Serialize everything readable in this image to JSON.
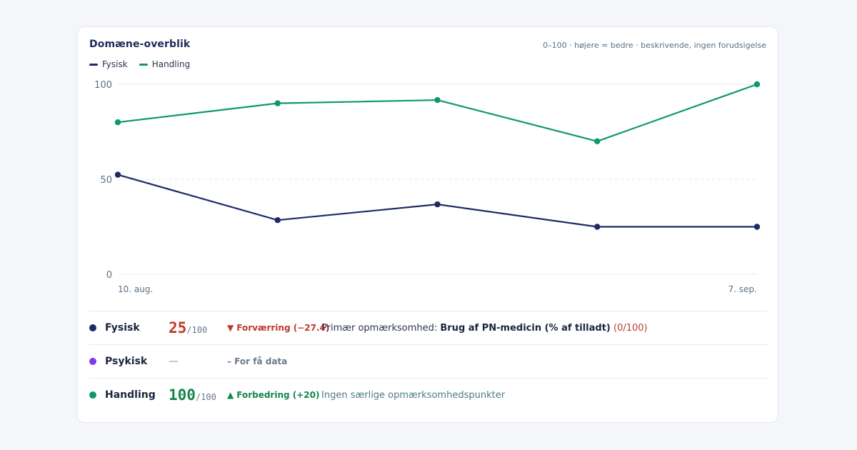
{
  "card": {
    "title": "Domæne-overblik",
    "subtitle": "0–100 · højere = bedre · beskrivende, ingen forudsigelse"
  },
  "legend": [
    {
      "label": "Fysisk",
      "color": "#1f2a66"
    },
    {
      "label": "Handling",
      "color": "#0f9968"
    }
  ],
  "chart_data": {
    "type": "line",
    "x": [
      "10. aug.",
      "",
      "",
      "",
      "7. sep."
    ],
    "x_tick_labels": {
      "first": "10. aug.",
      "last": "7. sep."
    },
    "ylim": [
      0,
      100
    ],
    "y_ticks": [
      "0",
      "50",
      "100"
    ],
    "reference_line": 50,
    "series": [
      {
        "name": "Fysisk",
        "color": "#1f2a66",
        "values": [
          52.4,
          28.5,
          36.8,
          25,
          25
        ]
      },
      {
        "name": "Handling",
        "color": "#0f9968",
        "values": [
          80,
          90,
          91.7,
          70,
          100
        ]
      }
    ]
  },
  "domains": [
    {
      "name": "Fysisk",
      "color": "#1f2a66",
      "score": "25",
      "max": "/100",
      "score_color": "#c0392b",
      "trend_icon": "▼",
      "trend": "Forværring (−27.4)",
      "trend_color": "#c0392b",
      "note_prefix": "Primær opmærksomhed: ",
      "note_bold": "Brug af PN-medicin (% af tilladt)",
      "note_suffix": " (0/100)",
      "note_suffix_color": "#c0392b"
    },
    {
      "name": "Psykisk",
      "color": "#7c3aed",
      "score_dash": "—",
      "trend": "– For få data",
      "trend_color": "#6a7a8c"
    },
    {
      "name": "Handling",
      "color": "#0f9968",
      "score": "100",
      "max": "/100",
      "score_color": "#13864f",
      "trend_icon": "▲",
      "trend": "Forbedring (+20)",
      "trend_color": "#13864f",
      "note": "Ingen særlige opmærksomhedspunkter"
    }
  ]
}
